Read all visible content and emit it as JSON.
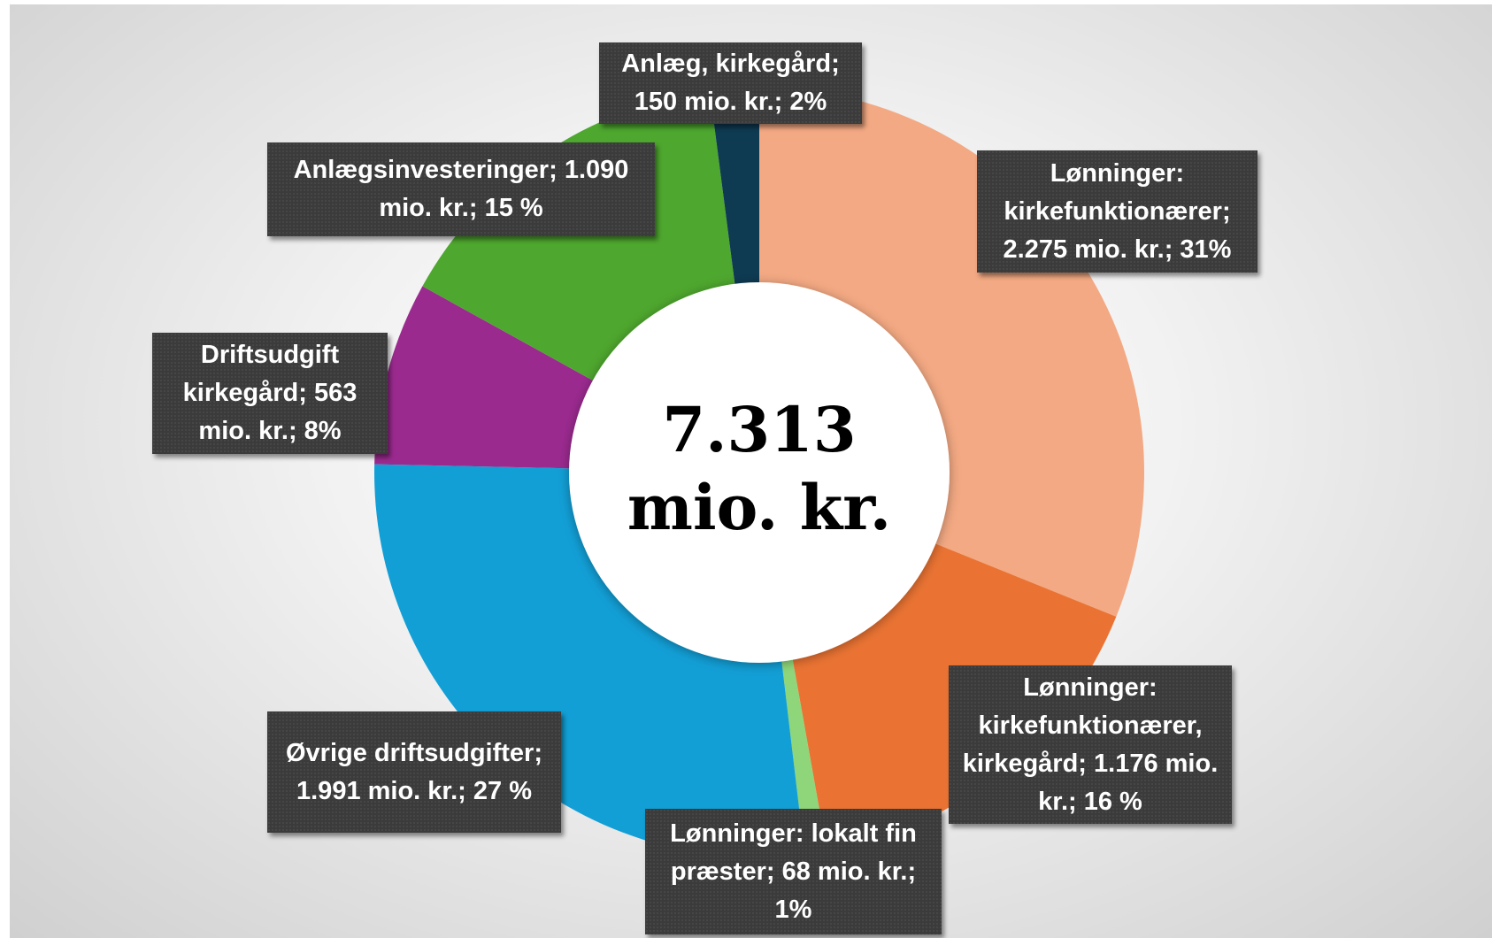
{
  "chart_data": {
    "type": "donut",
    "center_label": "7.313 mio. kr.",
    "categories": [
      "Lønninger: kirkefunktionærer;",
      "Lønninger: kirkefunktionærer, kirkegård;",
      "Lønninger: lokalt fin præster;",
      "Øvrige driftsudgifter;",
      "Driftsudgift kirkegård;",
      "Anlægsinvesteringer;",
      "Anlæg, kirkegård;"
    ],
    "values": [
      2275,
      1176,
      68,
      1991,
      563,
      1090,
      150
    ],
    "value_labels": [
      "2.275 mio. kr.; 31%",
      "1.176 mio. kr.; 16 %",
      "68 mio. kr.; 1%",
      "1.991 mio. kr.; 27 %",
      "563 mio. kr.; 8%",
      "1.090 mio. kr.; 15 %",
      "150 mio. kr.; 2%"
    ],
    "colors": [
      "#f3a983",
      "#ea7333",
      "#8fd67a",
      "#129fd6",
      "#9b2a8f",
      "#4ea72e",
      "#0e3a52"
    ]
  }
}
